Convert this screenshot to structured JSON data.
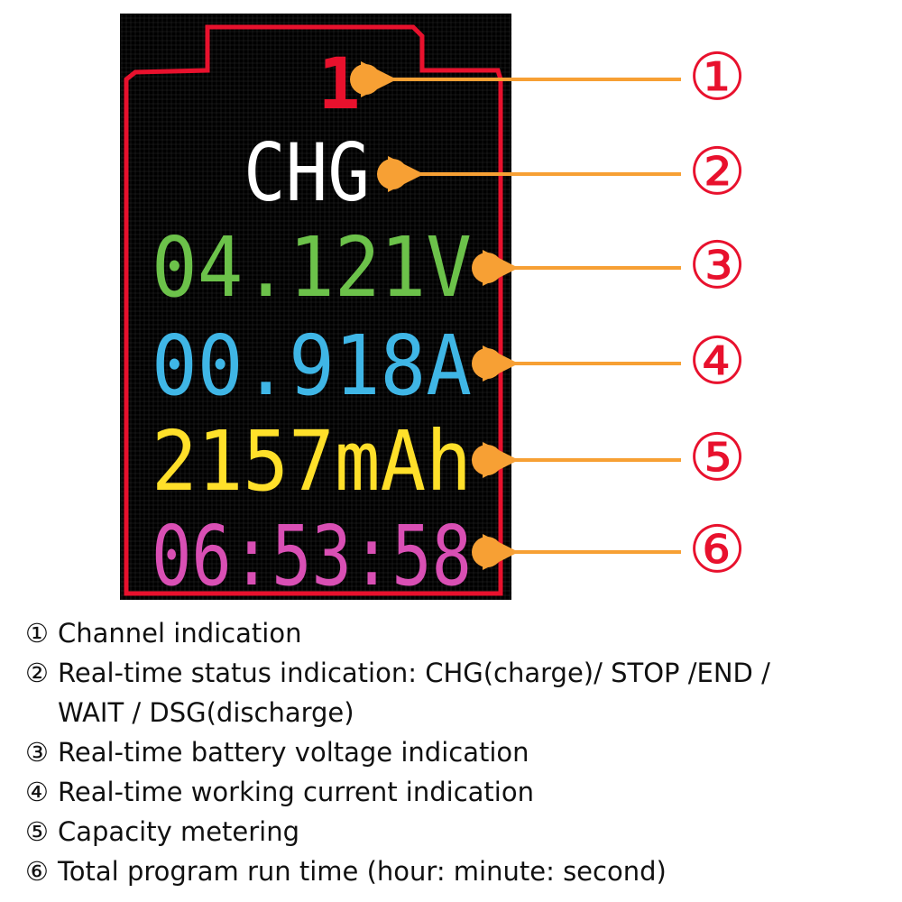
{
  "display": {
    "channel": "1",
    "status": "CHG",
    "voltage": "04.121V",
    "current": "00.918A",
    "capacity": "2157mAh",
    "runtime": "06:53:58",
    "colors": {
      "background": "#000000",
      "frame": "#e8112d",
      "channel": "#e8112d",
      "status": "#ffffff",
      "voltage": "#6cc24a",
      "current": "#3fb6e6",
      "capacity": "#ffe02a",
      "runtime": "#d94fb4"
    }
  },
  "callouts": {
    "color": "#f7a034",
    "marker_color": "#e8112d",
    "markers": [
      "①",
      "②",
      "③",
      "④",
      "⑤",
      "⑥"
    ]
  },
  "legend": [
    {
      "marker": "①",
      "text": "Channel indication"
    },
    {
      "marker": "②",
      "text": "Real-time status indication: CHG(charge)/ STOP /END /",
      "continuation": "WAIT / DSG(discharge)"
    },
    {
      "marker": "③",
      "text": "Real-time battery voltage indication"
    },
    {
      "marker": "④",
      "text": "Real-time working current indication"
    },
    {
      "marker": "⑤",
      "text": "Capacity metering"
    },
    {
      "marker": "⑥",
      "text": "Total program run time (hour: minute: second)"
    }
  ]
}
